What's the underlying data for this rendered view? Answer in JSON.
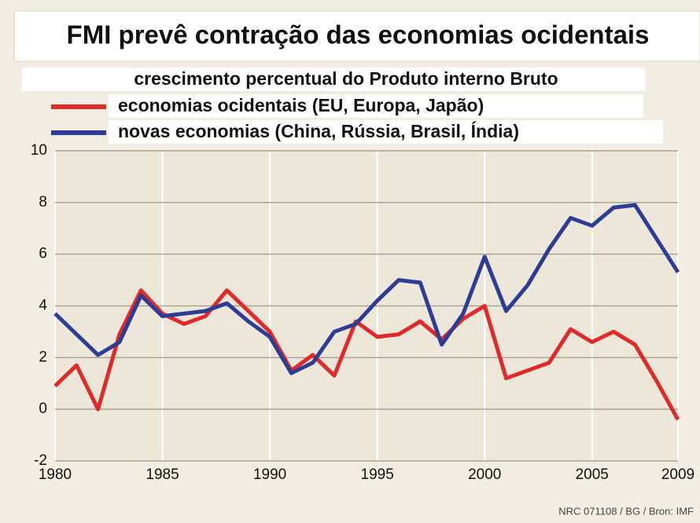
{
  "chart_data": {
    "type": "line",
    "title": "FMI  prevê contração das economias ocidentais",
    "subtitle": "crescimento percentual do Produto interno Bruto",
    "source": "NRC 071108 / BG / Bron: IMF",
    "x": [
      1980,
      1981,
      1982,
      1983,
      1984,
      1985,
      1986,
      1987,
      1988,
      1989,
      1990,
      1991,
      1992,
      1993,
      1994,
      1995,
      1996,
      1997,
      1998,
      1999,
      2000,
      2001,
      2002,
      2003,
      2004,
      2005,
      2006,
      2007,
      2008,
      2009
    ],
    "series": [
      {
        "name": "economias ocidentais (EU, Europa, Japão)",
        "color": "#e02a2a",
        "values": [
          0.9,
          1.7,
          0.0,
          2.9,
          4.6,
          3.7,
          3.3,
          3.6,
          4.6,
          3.8,
          3.0,
          1.5,
          2.1,
          1.3,
          3.4,
          2.8,
          2.9,
          3.4,
          2.7,
          3.5,
          4.0,
          1.2,
          1.5,
          1.8,
          3.1,
          2.6,
          3.0,
          2.5,
          1.1,
          -0.4
        ]
      },
      {
        "name": "novas economias (China, Rússia, Brasil, Índia)",
        "color": "#2e3c96",
        "values": [
          3.7,
          2.9,
          2.1,
          2.6,
          4.4,
          3.6,
          3.7,
          3.8,
          4.1,
          3.4,
          2.8,
          1.4,
          1.8,
          3.0,
          3.3,
          4.2,
          5.0,
          4.9,
          2.5,
          3.7,
          5.9,
          3.8,
          4.8,
          6.2,
          7.4,
          7.1,
          7.8,
          7.9,
          6.6,
          5.3
        ]
      }
    ],
    "xlim": [
      1980,
      2009
    ],
    "xticks": [
      1980,
      1985,
      1990,
      1995,
      2000,
      2005,
      2009
    ],
    "ylim": [
      -2,
      10
    ],
    "yticks": [
      -2,
      0,
      2,
      4,
      6,
      8,
      10
    ],
    "grid": true
  }
}
